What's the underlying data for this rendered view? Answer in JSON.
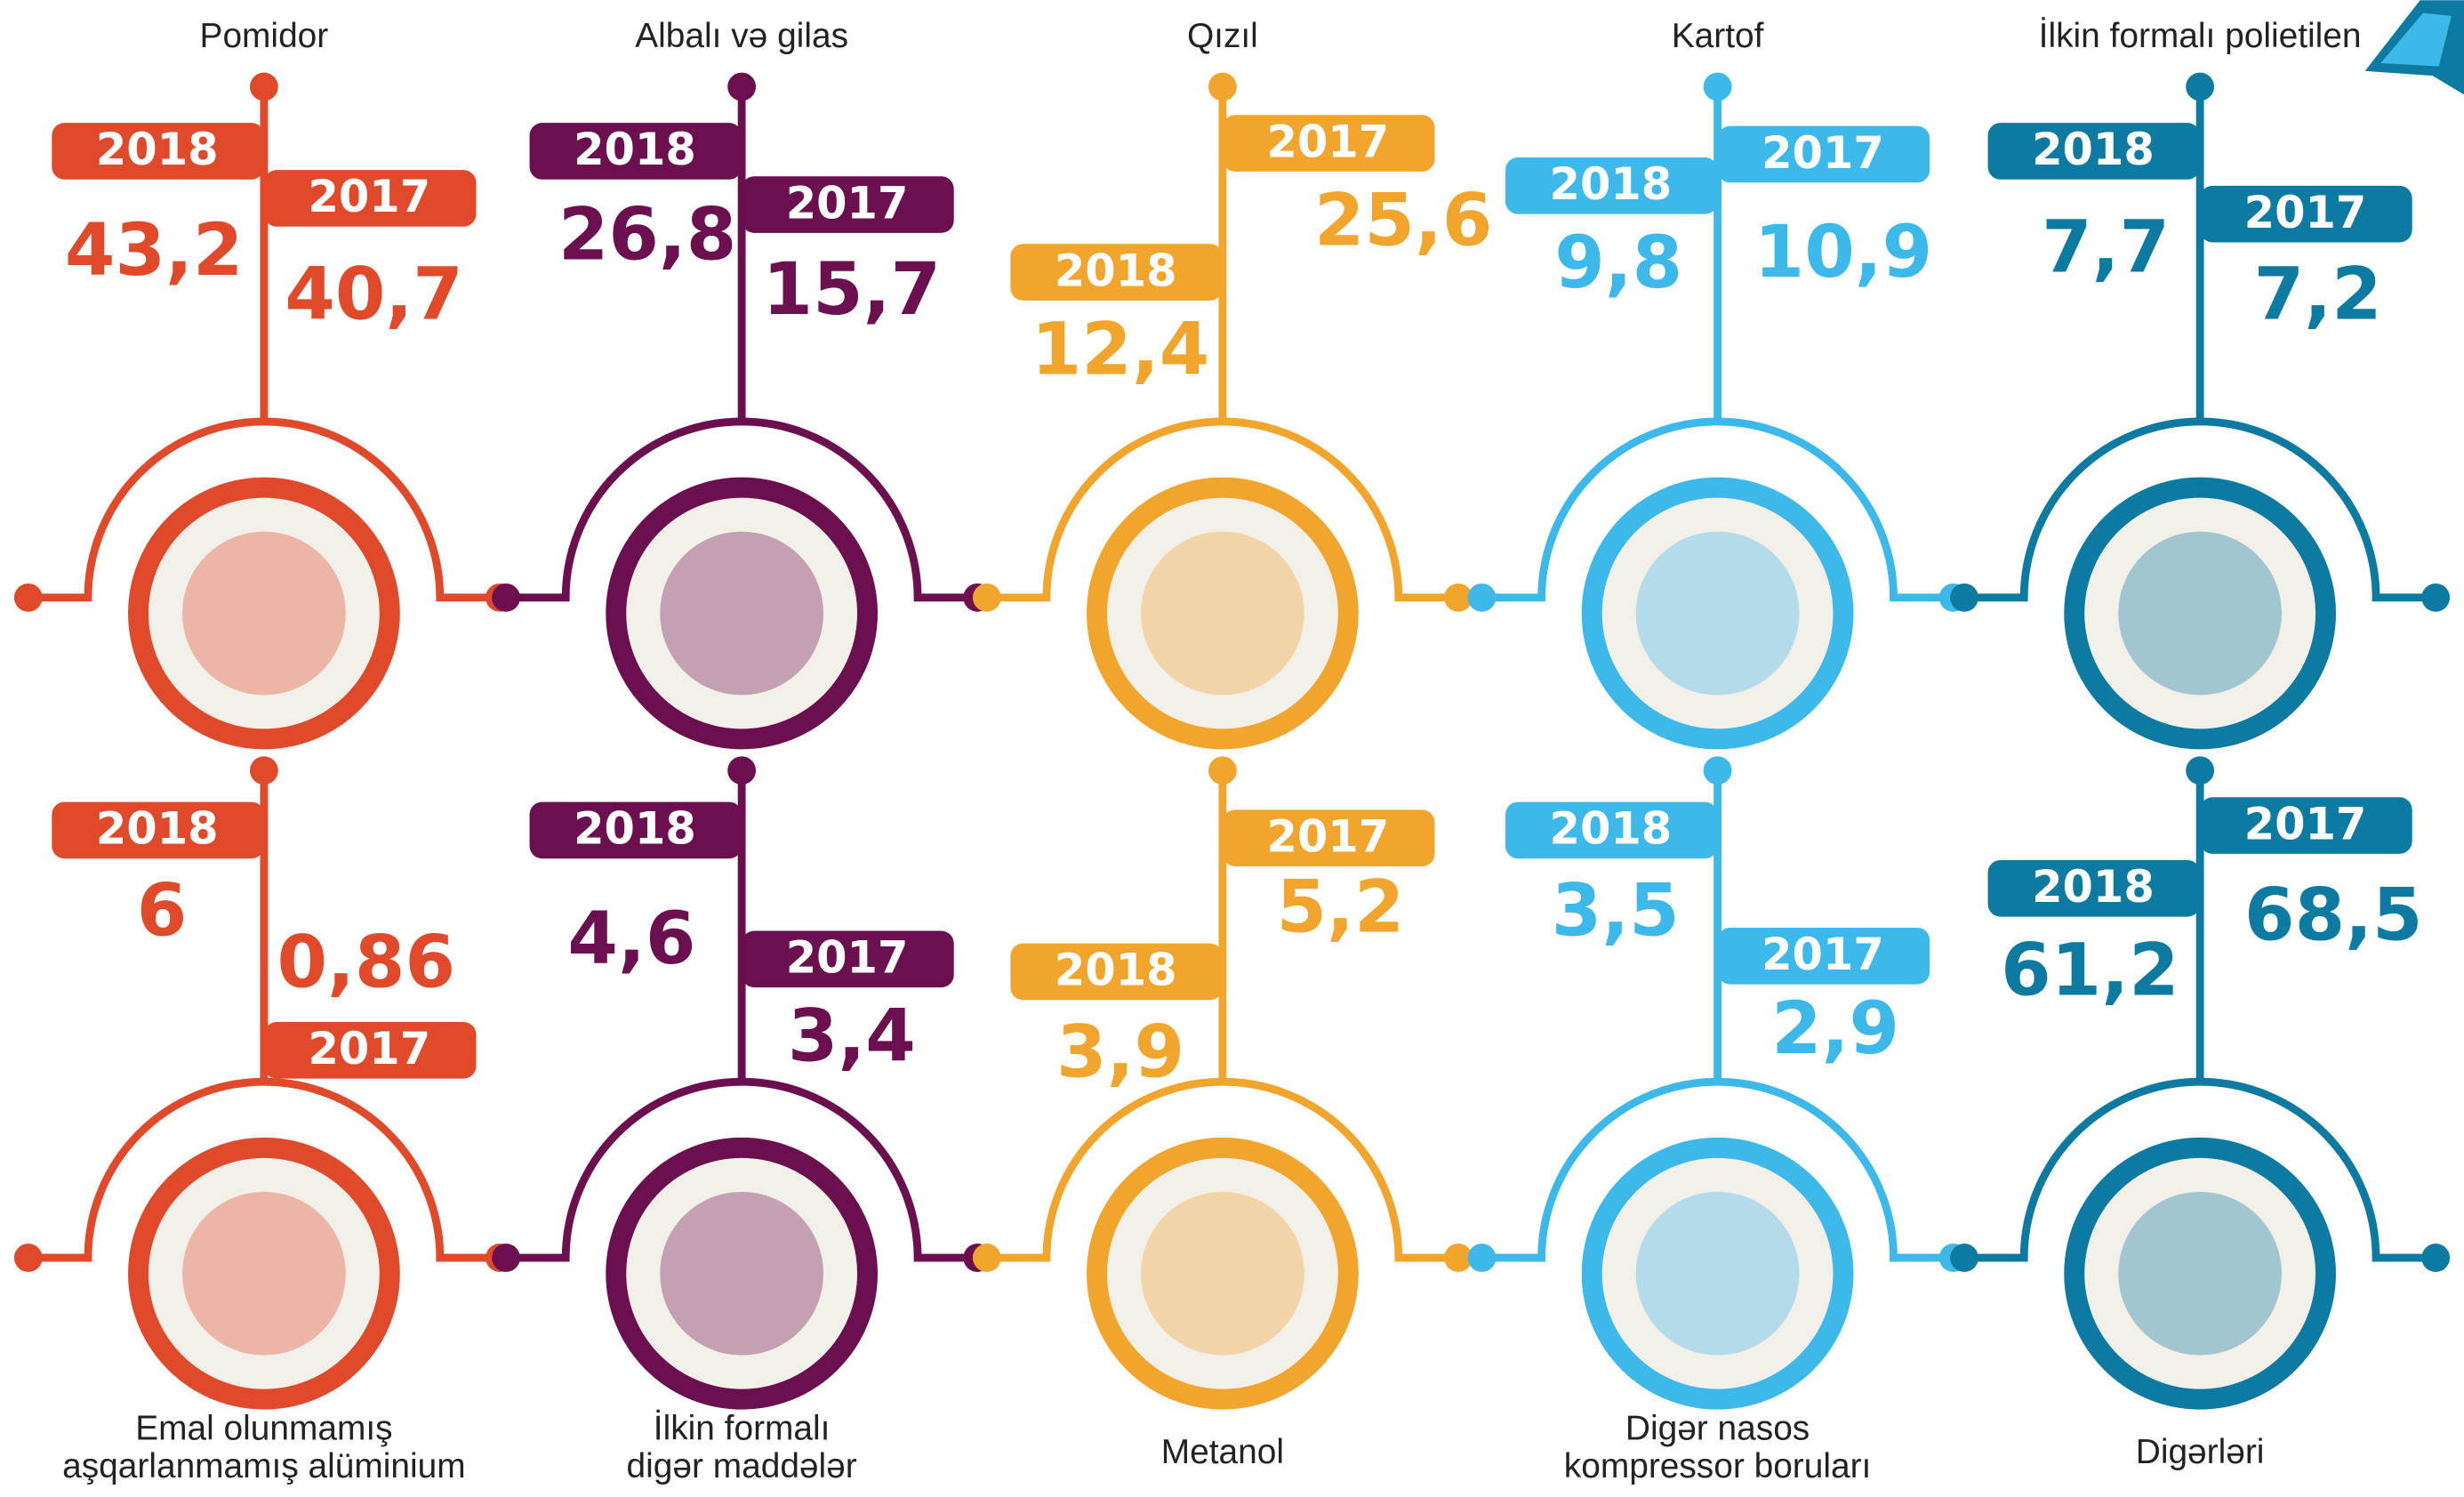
{
  "items": [
    {
      "title_lines": [
        "Pomidor"
      ],
      "color": "#e04a2a",
      "years": [
        {
          "label": "2018",
          "value": "43,2"
        },
        {
          "label": "2017",
          "value": "40,7"
        }
      ]
    },
    {
      "title_lines": [
        "Albalı və gilas"
      ],
      "color": "#6b0f4e",
      "years": [
        {
          "label": "2018",
          "value": "26,8"
        },
        {
          "label": "2017",
          "value": "15,7"
        }
      ]
    },
    {
      "title_lines": [
        "Qızıl"
      ],
      "color": "#f2a52c",
      "years": [
        {
          "label": "2018",
          "value": "12,4"
        },
        {
          "label": "2017",
          "value": "25,6"
        }
      ]
    },
    {
      "title_lines": [
        "Kartof"
      ],
      "color": "#3db8ea",
      "years": [
        {
          "label": "2018",
          "value": "9,8"
        },
        {
          "label": "2017",
          "value": "10,9"
        }
      ]
    },
    {
      "title_lines": [
        "İlkin formalı polietilen"
      ],
      "color": "#0c7aa1",
      "years": [
        {
          "label": "2018",
          "value": "7,7"
        },
        {
          "label": "2017",
          "value": "7,2"
        }
      ]
    },
    {
      "title_lines": [
        "Emal olunmamış",
        "aşqarlanmamış alüminium"
      ],
      "color": "#e04a2a",
      "years": [
        {
          "label": "2018",
          "value": "6"
        },
        {
          "label": "2017",
          "value": "0,86"
        }
      ]
    },
    {
      "title_lines": [
        "İlkin formalı",
        "digər maddələr"
      ],
      "color": "#6b0f4e",
      "years": [
        {
          "label": "2018",
          "value": "4,6"
        },
        {
          "label": "2017",
          "value": "3,4"
        }
      ]
    },
    {
      "title_lines": [
        "Metanol"
      ],
      "color": "#f2a52c",
      "years": [
        {
          "label": "2018",
          "value": "3,9"
        },
        {
          "label": "2017",
          "value": "5,2"
        }
      ]
    },
    {
      "title_lines": [
        "Digər nasos",
        "kompressor boruları"
      ],
      "color": "#3db8ea",
      "years": [
        {
          "label": "2018",
          "value": "3,5"
        },
        {
          "label": "2017",
          "value": "2,9"
        }
      ]
    },
    {
      "title_lines": [
        "Digərləri"
      ],
      "color": "#0c7aa1",
      "years": [
        {
          "label": "2018",
          "value": "61,2"
        },
        {
          "label": "2017",
          "value": "68,5"
        }
      ]
    }
  ]
}
